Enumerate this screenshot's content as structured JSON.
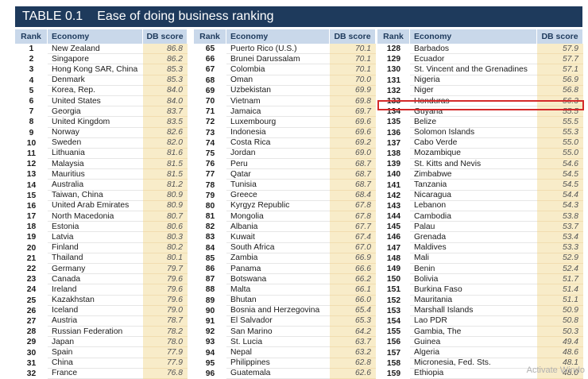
{
  "table": {
    "number": "TABLE 0.1",
    "title": "Ease of doing business ranking",
    "headers": {
      "rank": "Rank",
      "economy": "Economy",
      "score": "DB score"
    },
    "columns": [
      {
        "rows": [
          {
            "rank": "1",
            "economy": "New Zealand",
            "score": "86.8"
          },
          {
            "rank": "2",
            "economy": "Singapore",
            "score": "86.2"
          },
          {
            "rank": "3",
            "economy": "Hong Kong SAR, China",
            "score": "85.3"
          },
          {
            "rank": "4",
            "economy": "Denmark",
            "score": "85.3"
          },
          {
            "rank": "5",
            "economy": "Korea, Rep.",
            "score": "84.0"
          },
          {
            "rank": "6",
            "economy": "United States",
            "score": "84.0"
          },
          {
            "rank": "7",
            "economy": "Georgia",
            "score": "83.7"
          },
          {
            "rank": "8",
            "economy": "United Kingdom",
            "score": "83.5"
          },
          {
            "rank": "9",
            "economy": "Norway",
            "score": "82.6"
          },
          {
            "rank": "10",
            "economy": "Sweden",
            "score": "82.0"
          },
          {
            "rank": "11",
            "economy": "Lithuania",
            "score": "81.6"
          },
          {
            "rank": "12",
            "economy": "Malaysia",
            "score": "81.5"
          },
          {
            "rank": "13",
            "economy": "Mauritius",
            "score": "81.5"
          },
          {
            "rank": "14",
            "economy": "Australia",
            "score": "81.2"
          },
          {
            "rank": "15",
            "economy": "Taiwan, China",
            "score": "80.9"
          },
          {
            "rank": "16",
            "economy": "United Arab Emirates",
            "score": "80.9"
          },
          {
            "rank": "17",
            "economy": "North Macedonia",
            "score": "80.7"
          },
          {
            "rank": "18",
            "economy": "Estonia",
            "score": "80.6"
          },
          {
            "rank": "19",
            "economy": "Latvia",
            "score": "80.3"
          },
          {
            "rank": "20",
            "economy": "Finland",
            "score": "80.2"
          },
          {
            "rank": "21",
            "economy": "Thailand",
            "score": "80.1"
          },
          {
            "rank": "22",
            "economy": "Germany",
            "score": "79.7"
          },
          {
            "rank": "23",
            "economy": "Canada",
            "score": "79.6"
          },
          {
            "rank": "24",
            "economy": "Ireland",
            "score": "79.6"
          },
          {
            "rank": "25",
            "economy": "Kazakhstan",
            "score": "79.6"
          },
          {
            "rank": "26",
            "economy": "Iceland",
            "score": "79.0"
          },
          {
            "rank": "27",
            "economy": "Austria",
            "score": "78.7"
          },
          {
            "rank": "28",
            "economy": "Russian Federation",
            "score": "78.2"
          },
          {
            "rank": "29",
            "economy": "Japan",
            "score": "78.0"
          },
          {
            "rank": "30",
            "economy": "Spain",
            "score": "77.9"
          },
          {
            "rank": "31",
            "economy": "China",
            "score": "77.9"
          },
          {
            "rank": "32",
            "economy": "France",
            "score": "76.8"
          }
        ]
      },
      {
        "rows": [
          {
            "rank": "65",
            "economy": "Puerto Rico (U.S.)",
            "score": "70.1"
          },
          {
            "rank": "66",
            "economy": "Brunei Darussalam",
            "score": "70.1"
          },
          {
            "rank": "67",
            "economy": "Colombia",
            "score": "70.1"
          },
          {
            "rank": "68",
            "economy": "Oman",
            "score": "70.0"
          },
          {
            "rank": "69",
            "economy": "Uzbekistan",
            "score": "69.9"
          },
          {
            "rank": "70",
            "economy": "Vietnam",
            "score": "69.8"
          },
          {
            "rank": "71",
            "economy": "Jamaica",
            "score": "69.7"
          },
          {
            "rank": "72",
            "economy": "Luxembourg",
            "score": "69.6"
          },
          {
            "rank": "73",
            "economy": "Indonesia",
            "score": "69.6"
          },
          {
            "rank": "74",
            "economy": "Costa Rica",
            "score": "69.2"
          },
          {
            "rank": "75",
            "economy": "Jordan",
            "score": "69.0"
          },
          {
            "rank": "76",
            "economy": "Peru",
            "score": "68.7"
          },
          {
            "rank": "77",
            "economy": "Qatar",
            "score": "68.7"
          },
          {
            "rank": "78",
            "economy": "Tunisia",
            "score": "68.7"
          },
          {
            "rank": "79",
            "economy": "Greece",
            "score": "68.4"
          },
          {
            "rank": "80",
            "economy": "Kyrgyz Republic",
            "score": "67.8"
          },
          {
            "rank": "81",
            "economy": "Mongolia",
            "score": "67.8"
          },
          {
            "rank": "82",
            "economy": "Albania",
            "score": "67.7"
          },
          {
            "rank": "83",
            "economy": "Kuwait",
            "score": "67.4"
          },
          {
            "rank": "84",
            "economy": "South Africa",
            "score": "67.0"
          },
          {
            "rank": "85",
            "economy": "Zambia",
            "score": "66.9"
          },
          {
            "rank": "86",
            "economy": "Panama",
            "score": "66.6"
          },
          {
            "rank": "87",
            "economy": "Botswana",
            "score": "66.2"
          },
          {
            "rank": "88",
            "economy": "Malta",
            "score": "66.1"
          },
          {
            "rank": "89",
            "economy": "Bhutan",
            "score": "66.0"
          },
          {
            "rank": "90",
            "economy": "Bosnia and Herzegovina",
            "score": "65.4"
          },
          {
            "rank": "91",
            "economy": "El Salvador",
            "score": "65.3"
          },
          {
            "rank": "92",
            "economy": "San Marino",
            "score": "64.2"
          },
          {
            "rank": "93",
            "economy": "St. Lucia",
            "score": "63.7"
          },
          {
            "rank": "94",
            "economy": "Nepal",
            "score": "63.2"
          },
          {
            "rank": "95",
            "economy": "Philippines",
            "score": "62.8"
          },
          {
            "rank": "96",
            "economy": "Guatemala",
            "score": "62.6"
          }
        ]
      },
      {
        "rows": [
          {
            "rank": "128",
            "economy": "Barbados",
            "score": "57.9"
          },
          {
            "rank": "129",
            "economy": "Ecuador",
            "score": "57.7"
          },
          {
            "rank": "130",
            "economy": "St. Vincent and the Grenadines",
            "score": "57.1"
          },
          {
            "rank": "131",
            "economy": "Nigeria",
            "score": "56.9"
          },
          {
            "rank": "132",
            "economy": "Niger",
            "score": "56.8"
          },
          {
            "rank": "133",
            "economy": "Honduras",
            "score": "56.3"
          },
          {
            "rank": "134",
            "economy": "Guyana",
            "score": "55.5"
          },
          {
            "rank": "135",
            "economy": "Belize",
            "score": "55.5"
          },
          {
            "rank": "136",
            "economy": "Solomon Islands",
            "score": "55.3"
          },
          {
            "rank": "137",
            "economy": "Cabo Verde",
            "score": "55.0"
          },
          {
            "rank": "138",
            "economy": "Mozambique",
            "score": "55.0"
          },
          {
            "rank": "139",
            "economy": "St. Kitts and Nevis",
            "score": "54.6"
          },
          {
            "rank": "140",
            "economy": "Zimbabwe",
            "score": "54.5"
          },
          {
            "rank": "141",
            "economy": "Tanzania",
            "score": "54.5"
          },
          {
            "rank": "142",
            "economy": "Nicaragua",
            "score": "54.4"
          },
          {
            "rank": "143",
            "economy": "Lebanon",
            "score": "54.3"
          },
          {
            "rank": "144",
            "economy": "Cambodia",
            "score": "53.8"
          },
          {
            "rank": "145",
            "economy": "Palau",
            "score": "53.7"
          },
          {
            "rank": "146",
            "economy": "Grenada",
            "score": "53.4"
          },
          {
            "rank": "147",
            "economy": "Maldives",
            "score": "53.3"
          },
          {
            "rank": "148",
            "economy": "Mali",
            "score": "52.9"
          },
          {
            "rank": "149",
            "economy": "Benin",
            "score": "52.4"
          },
          {
            "rank": "150",
            "economy": "Bolivia",
            "score": "51.7"
          },
          {
            "rank": "151",
            "economy": "Burkina Faso",
            "score": "51.4"
          },
          {
            "rank": "152",
            "economy": "Mauritania",
            "score": "51.1"
          },
          {
            "rank": "153",
            "economy": "Marshall Islands",
            "score": "50.9"
          },
          {
            "rank": "154",
            "economy": "Lao PDR",
            "score": "50.8"
          },
          {
            "rank": "155",
            "economy": "Gambia, The",
            "score": "50.3"
          },
          {
            "rank": "156",
            "economy": "Guinea",
            "score": "49.4"
          },
          {
            "rank": "157",
            "economy": "Algeria",
            "score": "48.6"
          },
          {
            "rank": "158",
            "economy": "Micronesia, Fed. Sts.",
            "score": "48.1"
          },
          {
            "rank": "159",
            "economy": "Ethiopia",
            "score": "48.0"
          }
        ]
      }
    ]
  },
  "highlight": {
    "rank": "133",
    "economy": "Honduras"
  },
  "overlay_text": "Activate Windo"
}
